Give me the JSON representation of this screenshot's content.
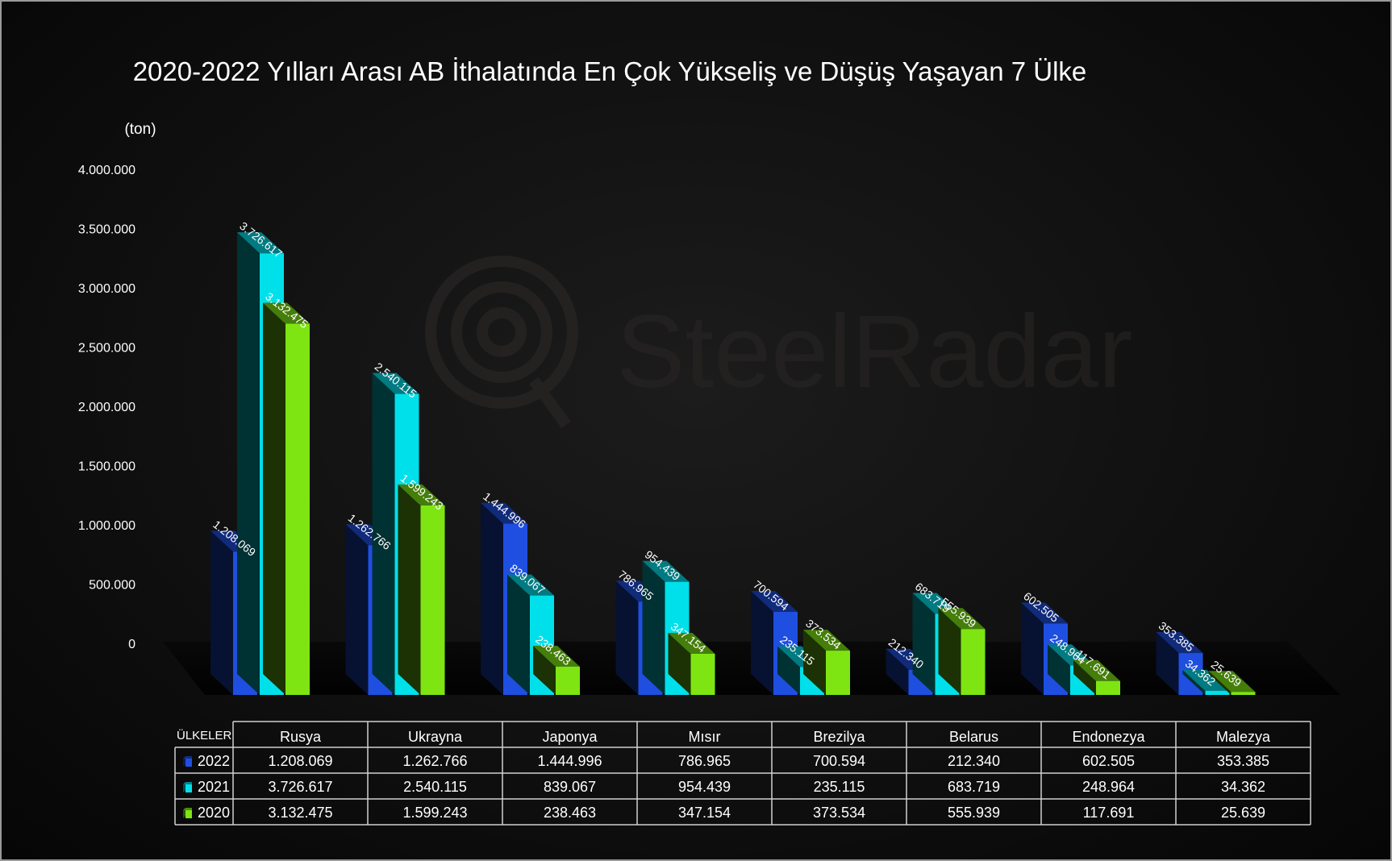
{
  "chart_data": {
    "type": "bar",
    "title": "2020-2022 Yılları Arası AB İthalatında En Çok Yükseliş ve Düşüş Yaşayan 7 Ülke",
    "ylabel": "(ton)",
    "ylim": [
      0,
      4000000
    ],
    "y_ticks": [
      0,
      500000,
      1000000,
      1500000,
      2000000,
      2500000,
      3000000,
      3500000,
      4000000
    ],
    "y_tick_labels": [
      "0",
      "500.000",
      "1.000.000",
      "1.500.000",
      "2.000.000",
      "2.500.000",
      "3.000.000",
      "3.500.000",
      "4.000.000"
    ],
    "categories": [
      "Rusya",
      "Ukrayna",
      "Japonya",
      "Mısır",
      "Brezilya",
      "Belarus",
      "Endonezya",
      "Malezya"
    ],
    "series": [
      {
        "name": "2022",
        "color": "#1f4fe0",
        "values": [
          1208069,
          1262766,
          1444996,
          786965,
          700594,
          212340,
          602505,
          353385
        ],
        "labels": [
          "1.208.069",
          "1.262.766",
          "1.444.996",
          "786.965",
          "700.594",
          "212.340",
          "602.505",
          "353.385"
        ]
      },
      {
        "name": "2021",
        "color": "#00e0ea",
        "values": [
          3726617,
          2540115,
          839067,
          954439,
          235115,
          683719,
          248964,
          34362
        ],
        "labels": [
          "3.726.617",
          "2.540.115",
          "839.067",
          "954.439",
          "235.115",
          "683.719",
          "248.964",
          "34.362"
        ]
      },
      {
        "name": "2020",
        "color": "#7ee512",
        "values": [
          3132475,
          1599243,
          238463,
          347154,
          373534,
          555939,
          117691,
          25639
        ],
        "labels": [
          "3.132.475",
          "1.599.243",
          "238.463",
          "347.154",
          "373.534",
          "555.939",
          "117.691",
          "25.639"
        ]
      }
    ],
    "table_header": "ÜLKELER",
    "grid": false,
    "legend": "data-table",
    "watermark": "SteelRadar"
  }
}
